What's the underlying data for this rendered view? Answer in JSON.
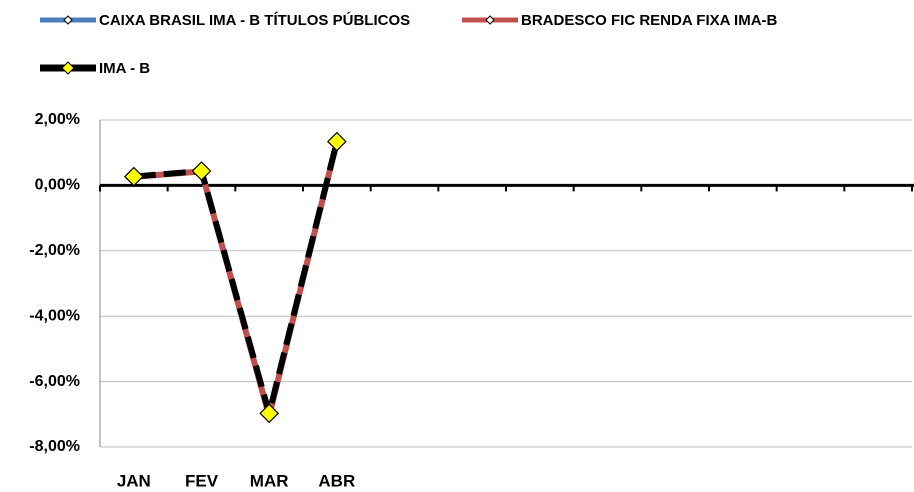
{
  "chart_data": {
    "type": "line",
    "categories": [
      "JAN",
      "FEV",
      "MAR",
      "ABR",
      null,
      null,
      null,
      null,
      null,
      null,
      null,
      null
    ],
    "series": [
      {
        "name": "CAIXA BRASIL IMA - B TÍTULOS PÚBLICOS",
        "color": "#4a7ebb",
        "values": [
          0.25,
          0.42,
          -7.0,
          1.3,
          null,
          null,
          null,
          null,
          null,
          null,
          null,
          null
        ]
      },
      {
        "name": "BRADESCO FIC RENDA FIXA IMA-B",
        "color": "#c0504d",
        "values": [
          0.26,
          0.43,
          -7.05,
          1.32,
          null,
          null,
          null,
          null,
          null,
          null,
          null,
          null
        ]
      },
      {
        "name": "IMA - B",
        "color": "#000000",
        "marker_color": "#ffff00",
        "values": [
          0.27,
          0.44,
          -6.97,
          1.34,
          null,
          null,
          null,
          null,
          null,
          null,
          null,
          null
        ]
      }
    ],
    "ylim": [
      -8,
      2
    ],
    "yticks": [
      {
        "value": -8,
        "label": "-8,00%"
      },
      {
        "value": -6,
        "label": "-6,00%"
      },
      {
        "value": -4,
        "label": "-4,00%"
      },
      {
        "value": -2,
        "label": "-2,00%"
      },
      {
        "value": 0,
        "label": "0,00%"
      },
      {
        "value": 2,
        "label": "2,00%"
      }
    ],
    "grid": true,
    "legend": "top"
  }
}
